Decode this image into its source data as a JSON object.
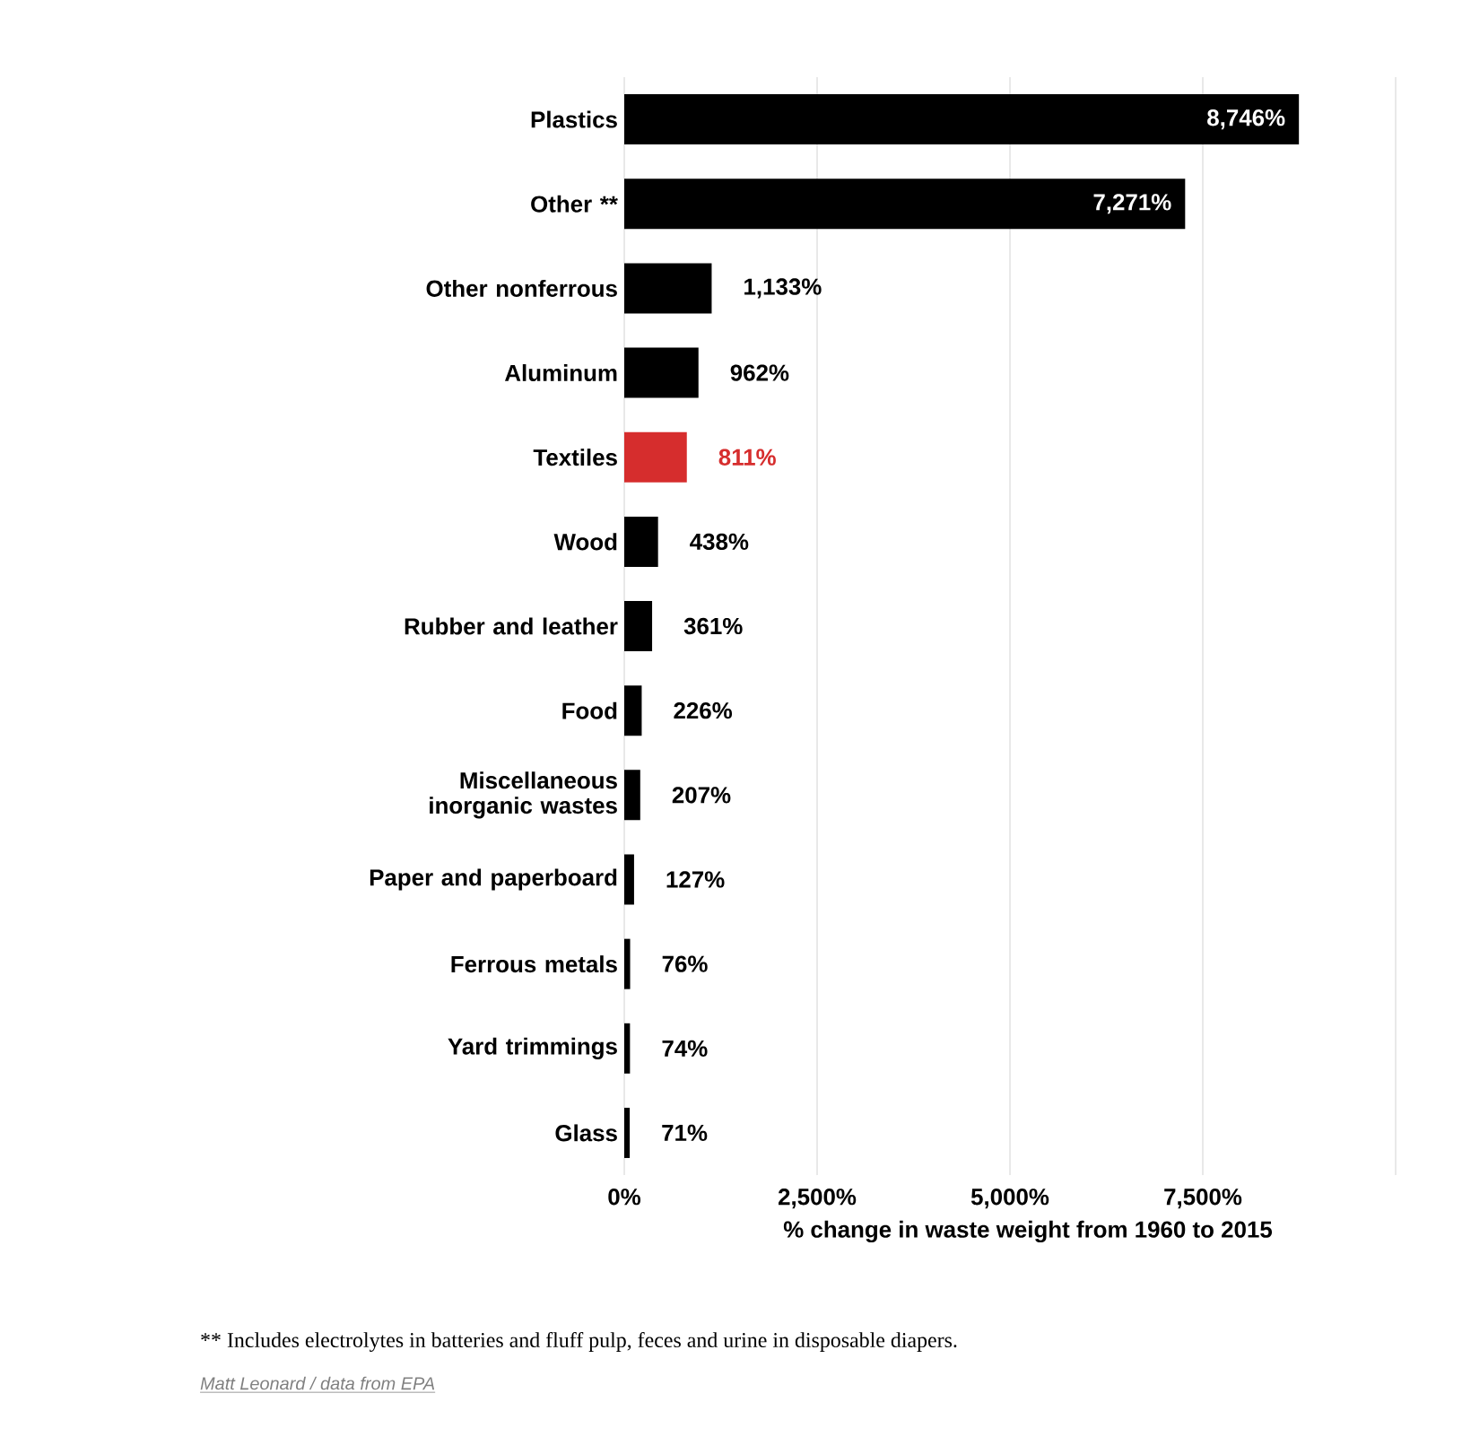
{
  "chart_data": {
    "type": "bar",
    "orientation": "horizontal",
    "xlabel": "% change in waste weight from 1960 to 2015",
    "categories": [
      "Plastics",
      "Other **",
      "Other nonferrous",
      "Aluminum",
      "Textiles",
      "Wood",
      "Rubber and leather",
      "Food",
      "Miscellaneous inorganic wastes",
      "Paper and paperboard",
      "Ferrous metals",
      "Yard trimmings",
      "Glass"
    ],
    "values": [
      8746,
      7271,
      1133,
      962,
      811,
      438,
      361,
      226,
      207,
      127,
      76,
      74,
      71
    ],
    "value_labels": [
      "8,746%",
      "7,271%",
      "1,133%",
      "962%",
      "811%",
      "438%",
      "361%",
      "226%",
      "207%",
      "127%",
      "76%",
      "74%",
      "71%"
    ],
    "colors": [
      "#000000",
      "#000000",
      "#000000",
      "#000000",
      "#d62d2d",
      "#000000",
      "#000000",
      "#000000",
      "#000000",
      "#000000",
      "#000000",
      "#000000",
      "#000000"
    ],
    "xlim": [
      0,
      10000
    ],
    "xticks": [
      {
        "value": 0,
        "label": "0%"
      },
      {
        "value": 2500,
        "label": "2,500%"
      },
      {
        "value": 5000,
        "label": "5,000%"
      },
      {
        "value": 7500,
        "label": "7,500%"
      },
      {
        "value": 10000,
        "label": null
      }
    ],
    "grid": "x",
    "annotations": [
      "** Includes electrolytes in batteries and fluff pulp, feces and urine in disposable diapers.",
      "Matt Leonard / data from EPA"
    ]
  }
}
